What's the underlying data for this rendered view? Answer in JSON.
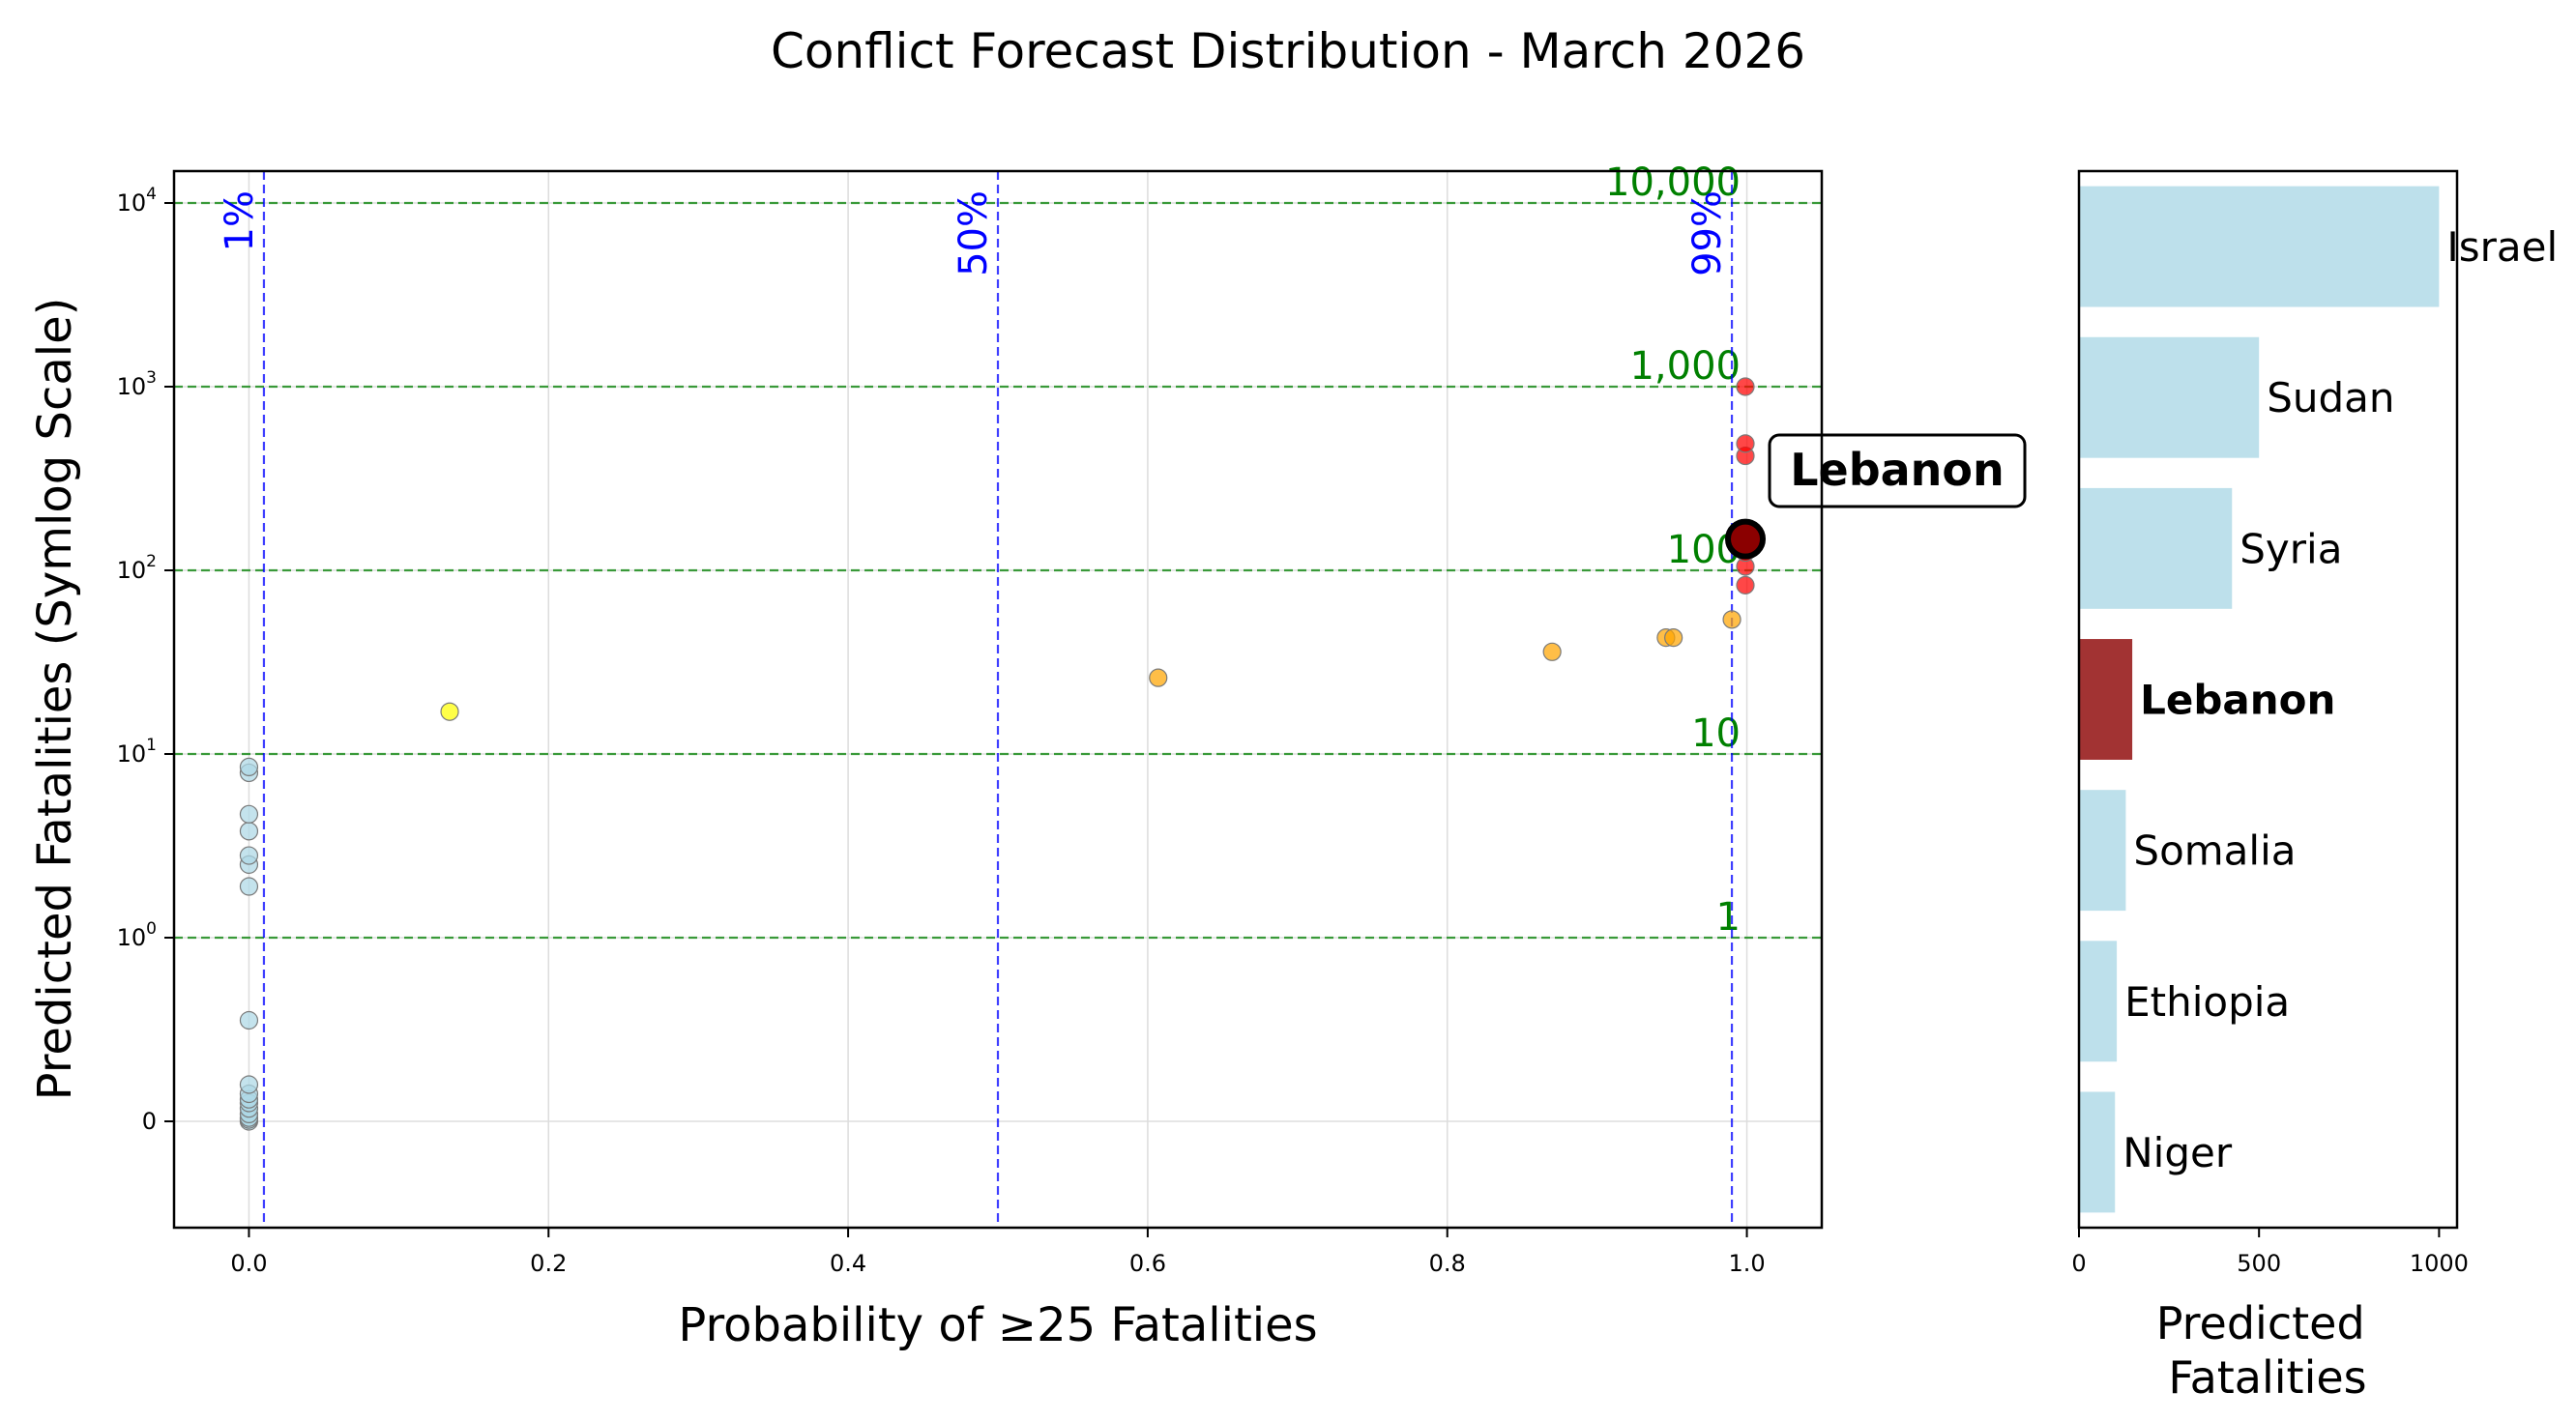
{
  "figure": {
    "title": "Conflict Forecast Distribution - March 2026"
  },
  "colors": {
    "low": "#add8e6",
    "yellow": "#ffff00",
    "orange": "#ffa500",
    "red": "#ff0000",
    "highlight": "#8b0000",
    "bar": "#add8e6",
    "bar_highlight": "#8b0000",
    "threshold_v": "#0000ff",
    "threshold_h": "#008000",
    "grid": "#dddddd"
  },
  "chart_data": [
    {
      "type": "scatter",
      "xlabel": "Probability of ≥25 Fatalities",
      "ylabel": "Predicted Fatalities (Symlog Scale)",
      "xlim": [
        -0.05,
        1.05
      ],
      "ylim": [
        -0.6,
        12000
      ],
      "yscale": "symlog",
      "grid": true,
      "x_ticks": [
        0.0,
        0.2,
        0.4,
        0.6,
        0.8,
        1.0
      ],
      "x_tick_labels": [
        "0.0",
        "0.2",
        "0.4",
        "0.6",
        "0.8",
        "1.0"
      ],
      "y_ticks": [
        0,
        1,
        10,
        100,
        1000,
        10000
      ],
      "y_tick_labels": [
        {
          "base": "0",
          "exp": ""
        },
        {
          "base": "10",
          "exp": "0"
        },
        {
          "base": "10",
          "exp": "1"
        },
        {
          "base": "10",
          "exp": "2"
        },
        {
          "base": "10",
          "exp": "3"
        },
        {
          "base": "10",
          "exp": "4"
        }
      ],
      "vlines": [
        {
          "x": 0.01,
          "label": "1%"
        },
        {
          "x": 0.5,
          "label": "50%"
        },
        {
          "x": 0.99,
          "label": "99%"
        }
      ],
      "hlines": [
        {
          "y": 1,
          "label": "1"
        },
        {
          "y": 10,
          "label": "10"
        },
        {
          "y": 100,
          "label": "100"
        },
        {
          "y": 1000,
          "label": "1,000"
        },
        {
          "y": 10000,
          "label": "10,000"
        }
      ],
      "points": [
        {
          "x": 0.0,
          "y": 0.0,
          "c": "low"
        },
        {
          "x": 0.0,
          "y": 0.01,
          "c": "low"
        },
        {
          "x": 0.0,
          "y": 0.02,
          "c": "low"
        },
        {
          "x": 0.0,
          "y": 0.04,
          "c": "low"
        },
        {
          "x": 0.0,
          "y": 0.07,
          "c": "low"
        },
        {
          "x": 0.0,
          "y": 0.1,
          "c": "low"
        },
        {
          "x": 0.0,
          "y": 0.12,
          "c": "low"
        },
        {
          "x": 0.0,
          "y": 0.15,
          "c": "low"
        },
        {
          "x": 0.0,
          "y": 0.2,
          "c": "low"
        },
        {
          "x": 0.0,
          "y": 0.55,
          "c": "low"
        },
        {
          "x": 0.0,
          "y": 1.9,
          "c": "low"
        },
        {
          "x": 0.0,
          "y": 2.5,
          "c": "low"
        },
        {
          "x": 0.0,
          "y": 2.8,
          "c": "low"
        },
        {
          "x": 0.0,
          "y": 3.8,
          "c": "low"
        },
        {
          "x": 0.0,
          "y": 4.7,
          "c": "low"
        },
        {
          "x": 0.0,
          "y": 7.9,
          "c": "low"
        },
        {
          "x": 0.0,
          "y": 8.5,
          "c": "low"
        },
        {
          "x": 0.134,
          "y": 17,
          "c": "yellow"
        },
        {
          "x": 0.607,
          "y": 26,
          "c": "orange"
        },
        {
          "x": 0.87,
          "y": 36,
          "c": "orange"
        },
        {
          "x": 0.946,
          "y": 43,
          "c": "orange"
        },
        {
          "x": 0.951,
          "y": 43,
          "c": "orange"
        },
        {
          "x": 0.99,
          "y": 54,
          "c": "orange"
        },
        {
          "x": 0.999,
          "y": 83,
          "c": "red"
        },
        {
          "x": 0.999,
          "y": 105,
          "c": "red"
        },
        {
          "x": 0.999,
          "y": 125,
          "c": "red"
        },
        {
          "x": 0.999,
          "y": 420,
          "c": "red"
        },
        {
          "x": 0.999,
          "y": 490,
          "c": "red"
        },
        {
          "x": 0.999,
          "y": 1000,
          "c": "red"
        }
      ],
      "highlight": {
        "label": "Lebanon",
        "x": 0.999,
        "y": 148
      }
    },
    {
      "type": "bar",
      "orientation": "horizontal",
      "xlabel": "Predicted Fatalities",
      "xlim": [
        0,
        1050
      ],
      "x_ticks": [
        0,
        500,
        1000
      ],
      "x_tick_labels": [
        "0",
        "500",
        "1000"
      ],
      "categories": [
        "Israel",
        "Sudan",
        "Syria",
        "Lebanon",
        "Somalia",
        "Ethiopia",
        "Niger"
      ],
      "values": [
        1000,
        500,
        425,
        148,
        130,
        105,
        100
      ],
      "highlight": "Lebanon"
    }
  ]
}
